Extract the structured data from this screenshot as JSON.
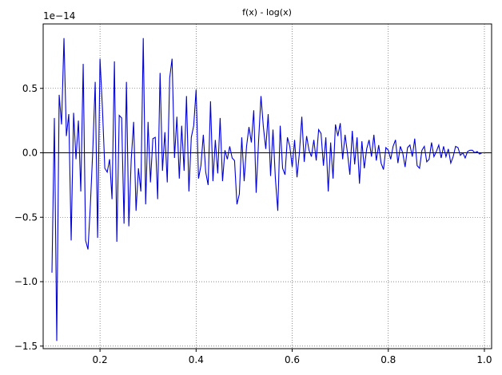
{
  "chart_data": {
    "type": "line",
    "title": "f(x) - log(x)",
    "y_offset_label": "1e−14",
    "color": "#0000dd",
    "grid": true,
    "xlim": [
      0.0817,
      1.015
    ],
    "ylim": [
      -1.52,
      1.0
    ],
    "xticks": [
      0.2,
      0.4,
      0.6,
      0.8,
      {
        "value": 1.0,
        "label": "1.0"
      }
    ],
    "yticks": [
      {
        "value": -1.5,
        "label": "−1.5"
      },
      {
        "value": -1.0,
        "label": "−1.0"
      },
      {
        "value": -0.5,
        "label": "−0.5"
      },
      {
        "value": 0,
        "label": "0.0"
      },
      0.5
    ],
    "x": [
      0.1,
      0.105,
      0.11,
      0.115,
      0.12,
      0.125,
      0.13,
      0.135,
      0.14,
      0.145,
      0.15,
      0.155,
      0.16,
      0.165,
      0.17,
      0.175,
      0.18,
      0.185,
      0.19,
      0.195,
      0.2,
      0.205,
      0.21,
      0.215,
      0.22,
      0.225,
      0.23,
      0.235,
      0.24,
      0.245,
      0.25,
      0.255,
      0.26,
      0.265,
      0.27,
      0.275,
      0.28,
      0.285,
      0.29,
      0.295,
      0.3,
      0.305,
      0.31,
      0.315,
      0.32,
      0.325,
      0.33,
      0.335,
      0.34,
      0.345,
      0.35,
      0.355,
      0.36,
      0.365,
      0.37,
      0.375,
      0.38,
      0.385,
      0.39,
      0.395,
      0.4,
      0.405,
      0.41,
      0.415,
      0.42,
      0.425,
      0.43,
      0.435,
      0.44,
      0.445,
      0.45,
      0.455,
      0.46,
      0.465,
      0.47,
      0.475,
      0.48,
      0.485,
      0.49,
      0.495,
      0.5,
      0.505,
      0.51,
      0.515,
      0.52,
      0.525,
      0.53,
      0.535,
      0.54,
      0.545,
      0.55,
      0.555,
      0.56,
      0.565,
      0.57,
      0.575,
      0.58,
      0.585,
      0.59,
      0.595,
      0.6,
      0.605,
      0.61,
      0.615,
      0.62,
      0.625,
      0.63,
      0.635,
      0.64,
      0.645,
      0.65,
      0.655,
      0.66,
      0.665,
      0.67,
      0.675,
      0.68,
      0.685,
      0.69,
      0.695,
      0.7,
      0.705,
      0.71,
      0.715,
      0.72,
      0.725,
      0.73,
      0.735,
      0.74,
      0.745,
      0.75,
      0.755,
      0.76,
      0.765,
      0.77,
      0.775,
      0.78,
      0.785,
      0.79,
      0.795,
      0.8,
      0.805,
      0.81,
      0.815,
      0.82,
      0.825,
      0.83,
      0.835,
      0.84,
      0.845,
      0.85,
      0.855,
      0.86,
      0.865,
      0.87,
      0.875,
      0.88,
      0.885,
      0.89,
      0.895,
      0.9,
      0.905,
      0.91,
      0.915,
      0.92,
      0.925,
      0.93,
      0.935,
      0.94,
      0.945,
      0.95,
      0.955,
      0.96,
      0.965,
      0.97,
      0.975,
      0.98,
      0.985,
      0.99,
      0.995,
      1.0
    ],
    "values": [
      -0.93,
      0.27,
      -1.46,
      0.45,
      0.22,
      0.89,
      0.13,
      0.3,
      -0.68,
      0.31,
      -0.05,
      0.25,
      -0.3,
      0.69,
      -0.68,
      -0.75,
      -0.4,
      0.02,
      0.55,
      -0.66,
      0.73,
      0.35,
      -0.12,
      -0.15,
      -0.05,
      -0.36,
      0.71,
      -0.69,
      0.29,
      0.27,
      -0.55,
      0.55,
      -0.57,
      -0.05,
      0.24,
      -0.45,
      -0.12,
      -0.3,
      0.89,
      -0.4,
      0.24,
      -0.23,
      0.11,
      0.12,
      -0.36,
      0.62,
      -0.14,
      0.16,
      -0.23,
      0.58,
      0.73,
      -0.04,
      0.28,
      -0.2,
      0.21,
      -0.14,
      0.44,
      -0.3,
      0.12,
      0.21,
      0.49,
      -0.2,
      -0.1,
      0.14,
      -0.15,
      -0.25,
      0.4,
      -0.22,
      0.1,
      -0.16,
      0.27,
      -0.22,
      0.02,
      -0.05,
      0.05,
      -0.04,
      -0.06,
      -0.4,
      -0.32,
      0.12,
      -0.22,
      0.05,
      0.2,
      0.08,
      0.33,
      -0.31,
      0.09,
      0.44,
      0.2,
      0.03,
      0.3,
      -0.18,
      0.18,
      -0.2,
      -0.45,
      0.21,
      -0.12,
      -0.17,
      0.12,
      0.05,
      -0.11,
      0.1,
      -0.19,
      0.0,
      0.28,
      -0.07,
      0.13,
      0.02,
      -0.03,
      0.1,
      -0.06,
      0.18,
      0.15,
      -0.1,
      0.12,
      -0.3,
      0.08,
      -0.2,
      0.22,
      0.13,
      0.23,
      -0.05,
      0.14,
      0.0,
      -0.17,
      0.17,
      -0.09,
      0.12,
      -0.24,
      0.09,
      -0.12,
      0.03,
      0.1,
      -0.03,
      0.14,
      -0.06,
      0.06,
      -0.08,
      -0.13,
      0.04,
      0.02,
      -0.05,
      0.05,
      0.1,
      -0.08,
      0.05,
      0.0,
      -0.11,
      0.04,
      0.06,
      -0.03,
      0.11,
      -0.1,
      -0.12,
      0.02,
      0.05,
      -0.07,
      -0.05,
      0.08,
      -0.03,
      0.01,
      0.06,
      -0.04,
      0.05,
      -0.03,
      0.03,
      -0.08,
      -0.03,
      0.05,
      0.04,
      -0.02,
      0.0,
      -0.04,
      0.01,
      0.02,
      0.02,
      0.0,
      0.01,
      -0.01,
      0.0,
      0.0
    ]
  }
}
